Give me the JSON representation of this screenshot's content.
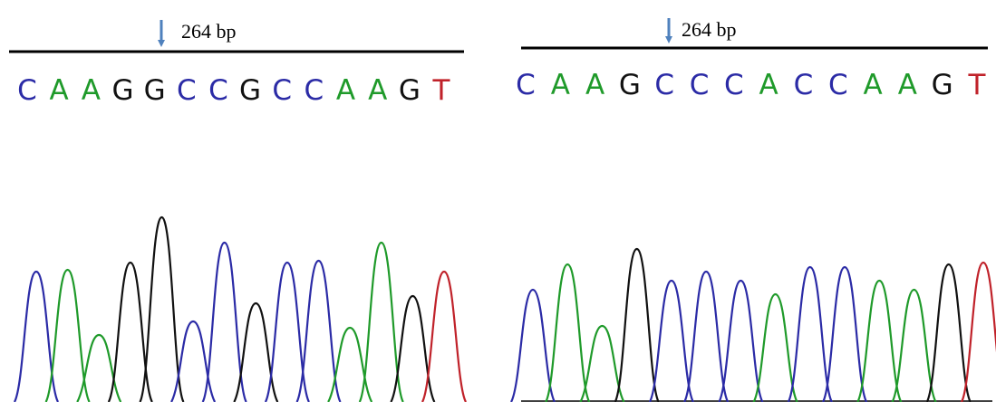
{
  "panels": [
    {
      "label": "264 bp",
      "bases": [
        "C",
        "A",
        "A",
        "G",
        "G",
        "C",
        "C",
        "G",
        "C",
        "C",
        "A",
        "A",
        "G",
        "T"
      ]
    },
    {
      "label": "264 bp",
      "bases": [
        "C",
        "A",
        "A",
        "G",
        "C",
        "C",
        "C",
        "A",
        "C",
        "C",
        "A",
        "A",
        "G",
        "T"
      ]
    }
  ]
}
